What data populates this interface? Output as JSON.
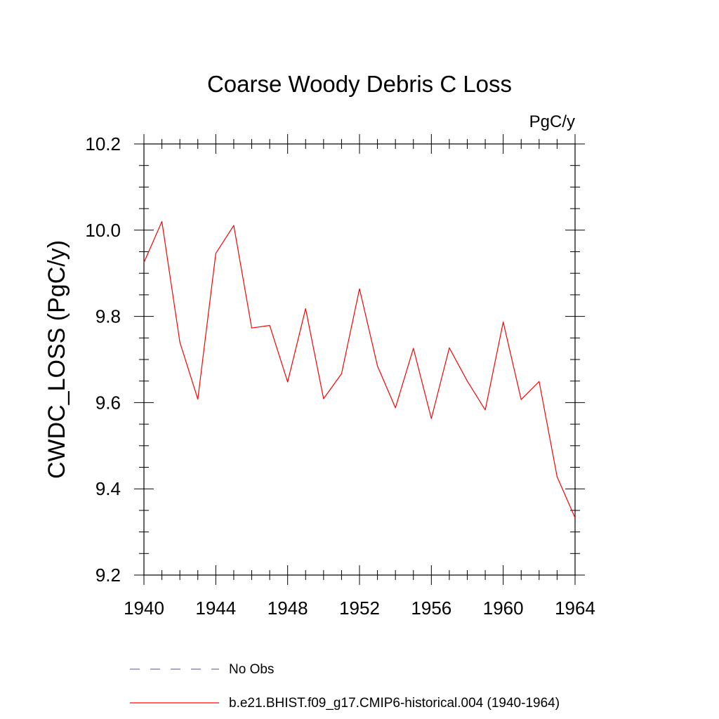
{
  "chart_data": {
    "type": "line",
    "title": "Coarse Woody Debris C Loss",
    "units": "PgC/y",
    "ylabel": "CWDC_LOSS  (PgC/y)",
    "xlabel": "",
    "xlim": [
      1940,
      1964
    ],
    "ylim": [
      9.2,
      10.2
    ],
    "x_ticks": [
      "1940",
      "1944",
      "1948",
      "1952",
      "1956",
      "1960",
      "1964"
    ],
    "y_ticks": [
      "9.2",
      "9.4",
      "9.6",
      "9.8",
      "10.0",
      "10.2"
    ],
    "grid": false,
    "legend_position": "bottom",
    "series": [
      {
        "name": "b.e21.BHIST.f09_g17.CMIP6-historical.004 (1940-1964)",
        "color": "#ff0000",
        "style": "solid",
        "x": [
          1940,
          1941,
          1942,
          1943,
          1944,
          1945,
          1946,
          1947,
          1948,
          1949,
          1950,
          1951,
          1952,
          1953,
          1954,
          1955,
          1956,
          1957,
          1958,
          1959,
          1960,
          1961,
          1962,
          1963,
          1964
        ],
        "values": [
          9.925,
          10.02,
          9.74,
          9.608,
          9.946,
          10.011,
          9.773,
          9.779,
          9.648,
          9.818,
          9.609,
          9.667,
          9.864,
          9.685,
          9.588,
          9.726,
          9.563,
          9.727,
          9.65,
          9.583,
          9.787,
          9.607,
          9.649,
          9.428,
          9.333
        ]
      }
    ],
    "legend": [
      {
        "label": "No Obs",
        "color": "#7a6fb5",
        "style": "dashed"
      },
      {
        "label": "b.e21.BHIST.f09_g17.CMIP6-historical.004 (1940-1964)",
        "color": "#ff0000",
        "style": "solid"
      }
    ]
  }
}
